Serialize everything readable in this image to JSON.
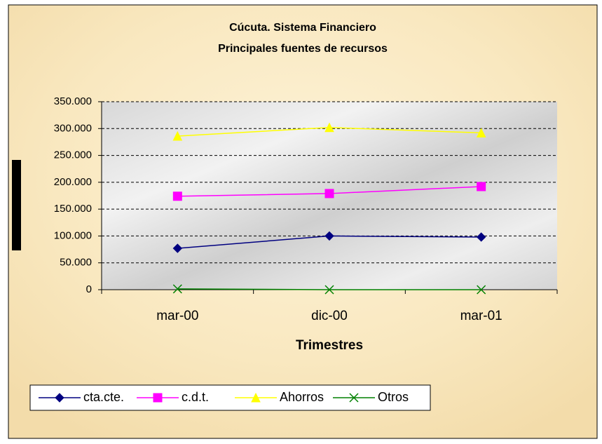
{
  "chart_data": {
    "type": "line",
    "title": "Cúcuta. Sistema Financiero",
    "subtitle": "Principales fuentes de recursos",
    "x_label": "Trimestres",
    "categories": [
      "mar-00",
      "dic-00",
      "mar-01"
    ],
    "series": [
      {
        "name": "cta.cte.",
        "color": "#000080",
        "marker": "diamond",
        "values": [
          77000,
          100000,
          98000
        ]
      },
      {
        "name": "c.d.t.",
        "color": "#ff00ff",
        "marker": "square",
        "values": [
          174000,
          179000,
          192000
        ]
      },
      {
        "name": "Ahorros",
        "color": "#ffff00",
        "marker": "triangle",
        "values": [
          286000,
          302000,
          292000
        ]
      },
      {
        "name": "Otros",
        "color": "#008000",
        "marker": "x",
        "values": [
          1500,
          0,
          0
        ]
      }
    ],
    "ylim": [
      0,
      350000
    ],
    "yticks": [
      0,
      {
        "value": 50000,
        "label": "50.000"
      },
      {
        "value": 100000,
        "label": "100.000"
      },
      {
        "value": 150000,
        "label": "150.000"
      },
      {
        "value": 200000,
        "label": "200.000"
      },
      {
        "value": 250000,
        "label": "250.000"
      },
      {
        "value": 300000,
        "label": "300.000"
      },
      {
        "value": 350000,
        "label": "350.000"
      }
    ],
    "grid": true
  }
}
